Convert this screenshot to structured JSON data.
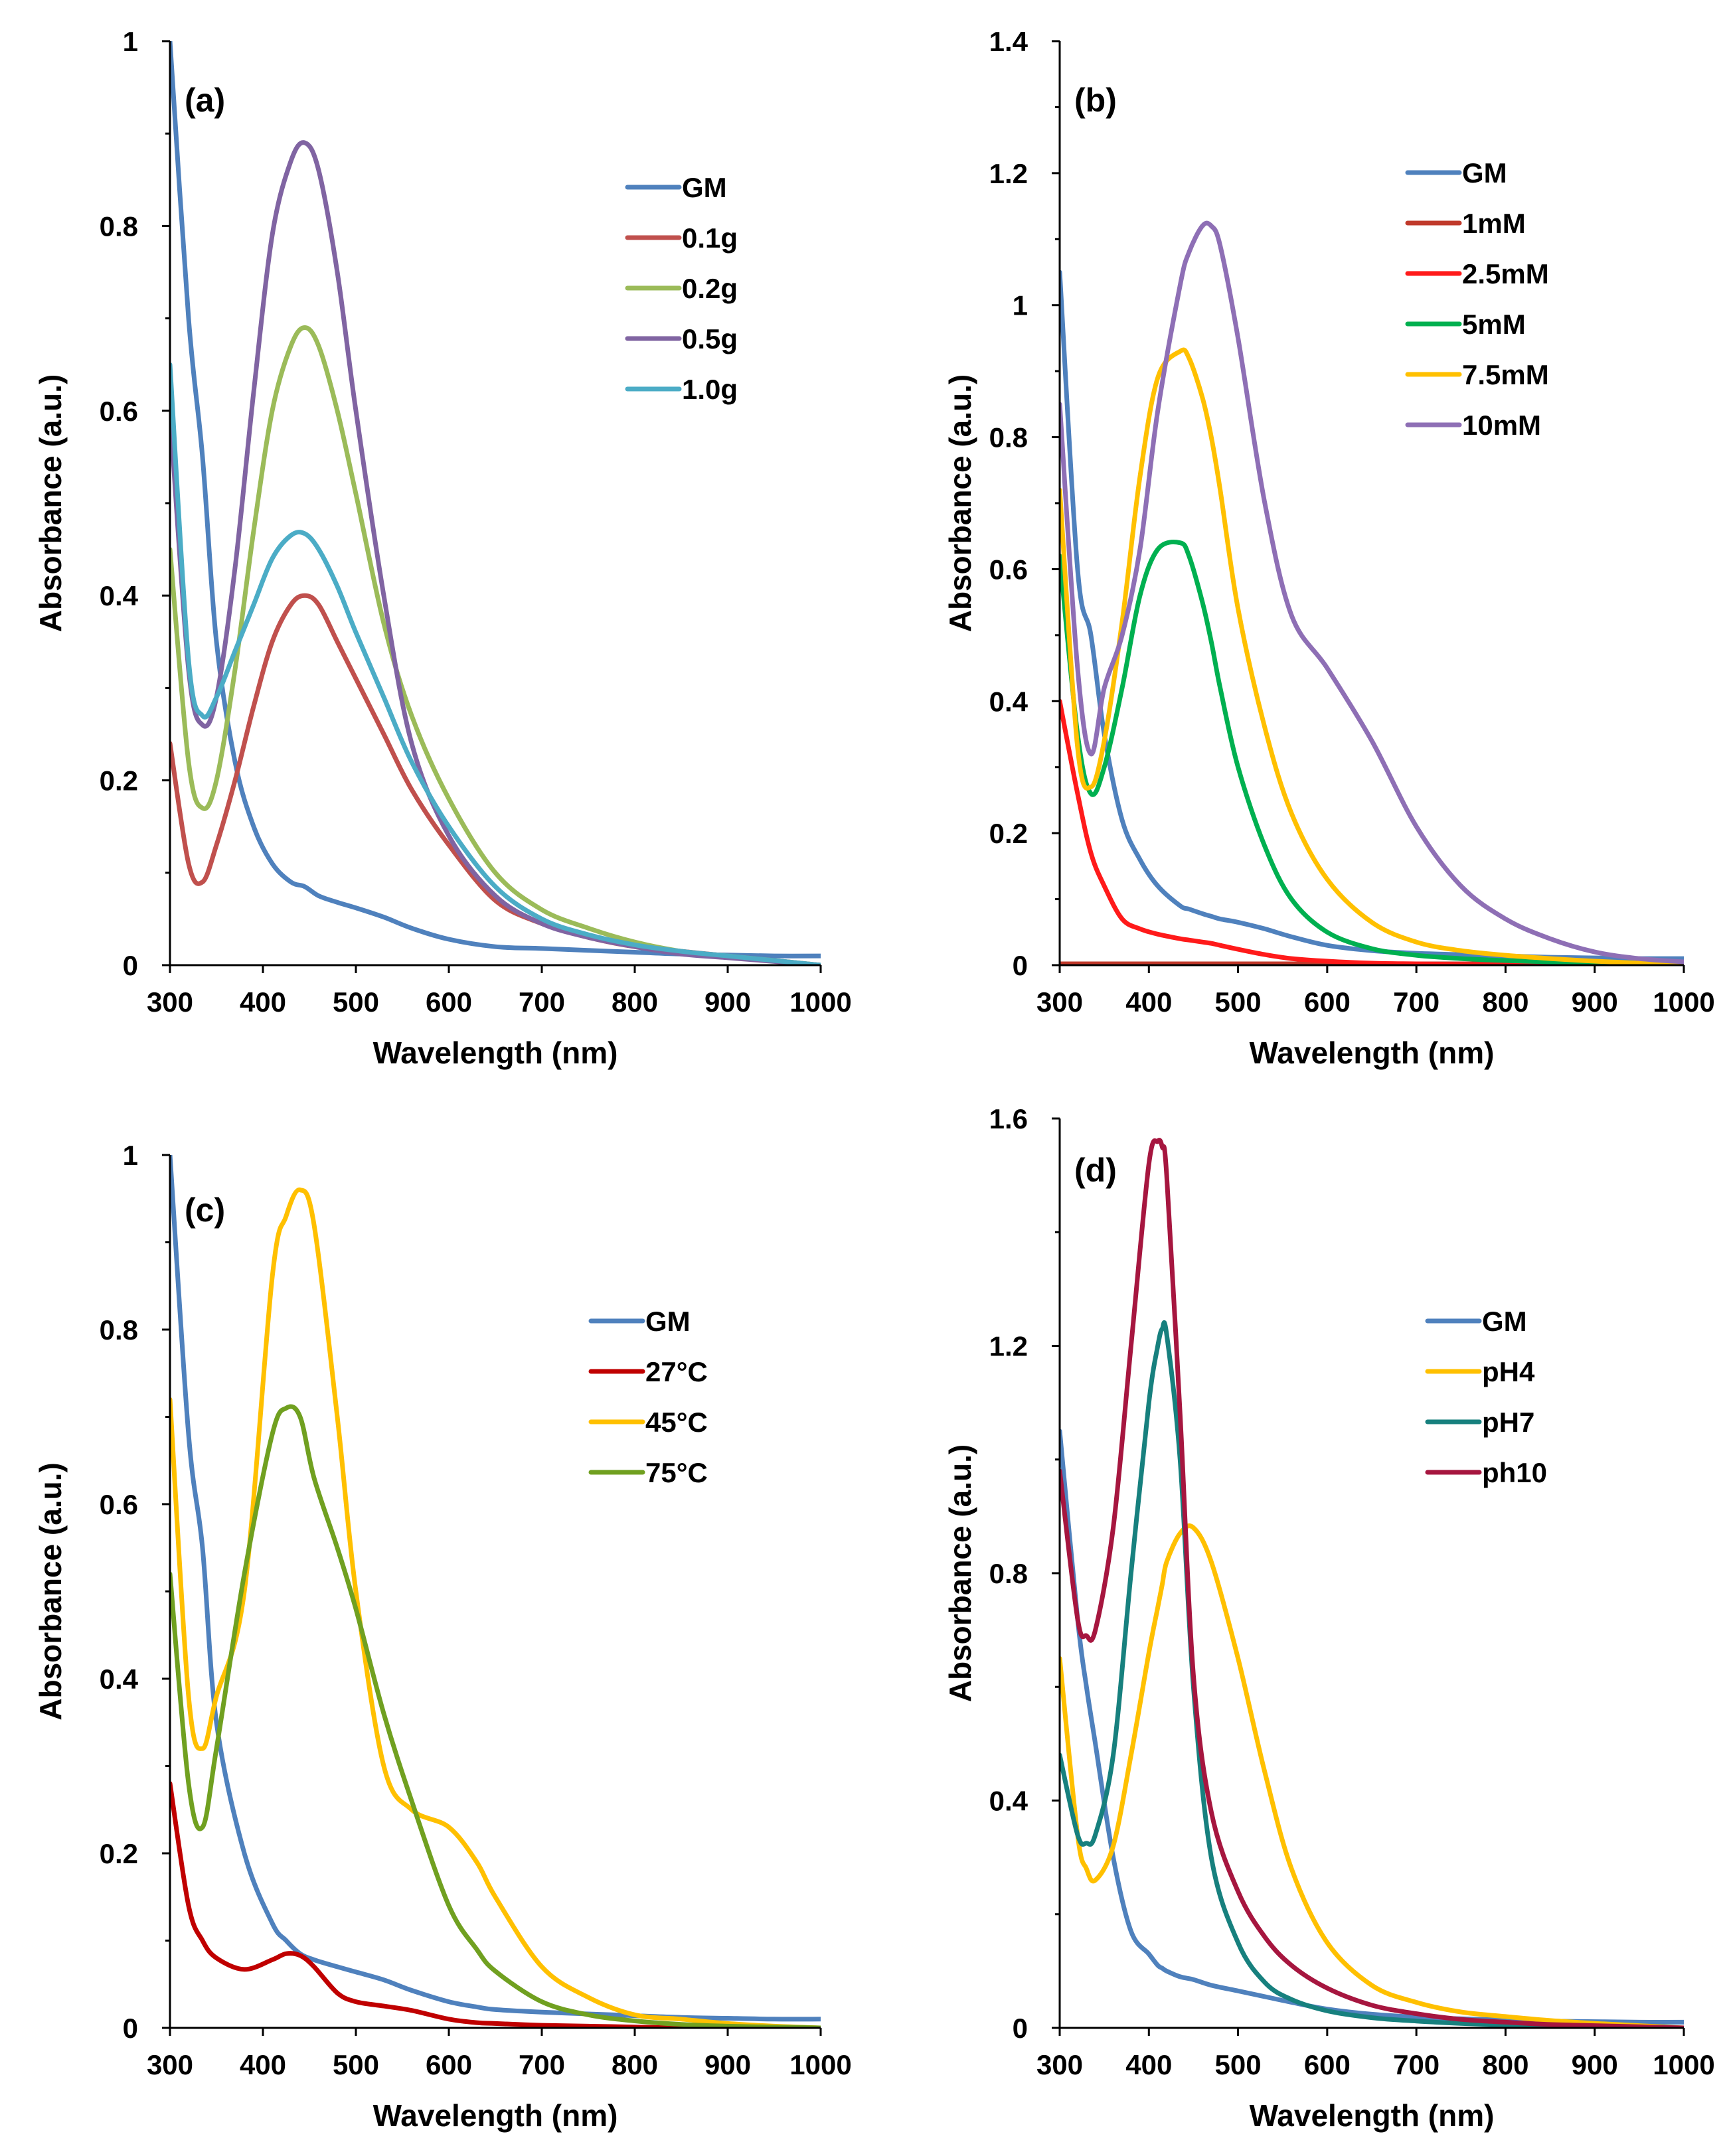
{
  "chart_data": [
    {
      "type": "line",
      "panel_label": "(a)",
      "xlabel": "Wavelength (nm)",
      "ylabel": "Absorbance (a.u.)",
      "xlim": [
        300,
        1000
      ],
      "ylim": [
        0,
        1
      ],
      "xticks": [
        "300",
        "400",
        "500",
        "600",
        "700",
        "800",
        "900",
        "1000"
      ],
      "yticks": [
        "0",
        "0.2",
        "0.4",
        "0.6",
        "0.8",
        "1"
      ],
      "legend_position": "top-right",
      "x": [
        300,
        320,
        335,
        350,
        370,
        390,
        410,
        430,
        445,
        460,
        480,
        500,
        530,
        560,
        600,
        650,
        700,
        750,
        800,
        850,
        900,
        950,
        1000
      ],
      "series": [
        {
          "name": "GM",
          "color": "#4f81bd",
          "values": [
            1.0,
            0.7,
            0.55,
            0.35,
            0.22,
            0.15,
            0.11,
            0.09,
            0.085,
            0.075,
            0.068,
            0.062,
            0.052,
            0.04,
            0.028,
            0.02,
            0.018,
            0.016,
            0.014,
            0.012,
            0.011,
            0.01,
            0.01
          ]
        },
        {
          "name": "0.1g",
          "color": "#c0504d",
          "values": [
            0.24,
            0.11,
            0.09,
            0.13,
            0.2,
            0.28,
            0.35,
            0.39,
            0.4,
            0.39,
            0.35,
            0.31,
            0.25,
            0.19,
            0.13,
            0.07,
            0.045,
            0.03,
            0.02,
            0.015,
            0.01,
            0.005,
            0.0
          ]
        },
        {
          "name": "0.2g",
          "color": "#9bbb59",
          "values": [
            0.45,
            0.22,
            0.17,
            0.2,
            0.32,
            0.47,
            0.6,
            0.67,
            0.69,
            0.67,
            0.6,
            0.51,
            0.37,
            0.27,
            0.18,
            0.1,
            0.06,
            0.04,
            0.025,
            0.015,
            0.01,
            0.005,
            0.0
          ]
        },
        {
          "name": "0.5g",
          "color": "#8064a2",
          "values": [
            0.6,
            0.32,
            0.26,
            0.29,
            0.43,
            0.62,
            0.79,
            0.87,
            0.89,
            0.86,
            0.75,
            0.6,
            0.4,
            0.24,
            0.14,
            0.075,
            0.045,
            0.03,
            0.02,
            0.012,
            0.008,
            0.004,
            0.0
          ]
        },
        {
          "name": "1.0g",
          "color": "#4bacc6",
          "values": [
            0.65,
            0.33,
            0.27,
            0.29,
            0.34,
            0.39,
            0.44,
            0.465,
            0.467,
            0.45,
            0.41,
            0.36,
            0.29,
            0.22,
            0.15,
            0.085,
            0.05,
            0.033,
            0.022,
            0.015,
            0.01,
            0.005,
            0.0
          ]
        }
      ]
    },
    {
      "type": "line",
      "panel_label": "(b)",
      "xlabel": "Wavelength (nm)",
      "ylabel": "Absorbance (a.u.)",
      "xlim": [
        300,
        1000
      ],
      "ylim": [
        0,
        1.4
      ],
      "xticks": [
        "300",
        "400",
        "500",
        "600",
        "700",
        "800",
        "900",
        "1000"
      ],
      "yticks": [
        "0",
        "0.2",
        "0.4",
        "0.6",
        "0.8",
        "1",
        "1.2",
        "1.4"
      ],
      "legend_position": "top-right",
      "x": [
        300,
        320,
        335,
        350,
        370,
        390,
        410,
        435,
        445,
        460,
        470,
        480,
        500,
        530,
        560,
        600,
        650,
        700,
        750,
        800,
        850,
        900,
        950,
        1000
      ],
      "series": [
        {
          "name": "GM",
          "color": "#4f81bd",
          "values": [
            1.05,
            0.6,
            0.5,
            0.35,
            0.22,
            0.16,
            0.12,
            0.09,
            0.085,
            0.078,
            0.074,
            0.07,
            0.065,
            0.055,
            0.043,
            0.03,
            0.022,
            0.018,
            0.016,
            0.014,
            0.012,
            0.011,
            0.01,
            0.01
          ]
        },
        {
          "name": "1mM",
          "color": "#c0392b",
          "values": [
            0.002,
            0.002,
            0.002,
            0.002,
            0.002,
            0.002,
            0.002,
            0.002,
            0.002,
            0.002,
            0.002,
            0.002,
            0.002,
            0.002,
            0.002,
            0.002,
            0.002,
            0.002,
            0.002,
            0.002,
            0.002,
            0.002,
            0.002,
            0.002
          ]
        },
        {
          "name": "2.5mM",
          "color": "#ff1a1a",
          "values": [
            0.4,
            0.26,
            0.17,
            0.12,
            0.07,
            0.055,
            0.047,
            0.04,
            0.038,
            0.035,
            0.033,
            0.03,
            0.024,
            0.016,
            0.01,
            0.006,
            0.003,
            0.002,
            0.001,
            0.0,
            0.0,
            0.0,
            0.0,
            0.0
          ]
        },
        {
          "name": "5mM",
          "color": "#00b050",
          "values": [
            0.62,
            0.35,
            0.26,
            0.3,
            0.42,
            0.56,
            0.63,
            0.64,
            0.62,
            0.55,
            0.49,
            0.42,
            0.3,
            0.18,
            0.1,
            0.05,
            0.025,
            0.015,
            0.01,
            0.007,
            0.005,
            0.003,
            0.002,
            0.0
          ]
        },
        {
          "name": "7.5mM",
          "color": "#ffc000",
          "values": [
            0.72,
            0.33,
            0.27,
            0.34,
            0.52,
            0.74,
            0.89,
            0.93,
            0.92,
            0.86,
            0.8,
            0.72,
            0.54,
            0.36,
            0.23,
            0.13,
            0.065,
            0.035,
            0.022,
            0.015,
            0.01,
            0.006,
            0.003,
            0.0
          ]
        },
        {
          "name": "10mM",
          "color": "#8e6fb5",
          "values": [
            0.85,
            0.45,
            0.32,
            0.42,
            0.5,
            0.63,
            0.84,
            1.03,
            1.08,
            1.12,
            1.12,
            1.09,
            0.95,
            0.7,
            0.53,
            0.45,
            0.34,
            0.21,
            0.12,
            0.07,
            0.04,
            0.02,
            0.01,
            0.005
          ]
        }
      ]
    },
    {
      "type": "line",
      "panel_label": "(c)",
      "xlabel": "Wavelength (nm)",
      "ylabel": "Absorbance (a.u.)",
      "xlim": [
        300,
        1000
      ],
      "ylim": [
        0,
        1
      ],
      "xticks": [
        "300",
        "400",
        "500",
        "600",
        "700",
        "800",
        "900",
        "1000"
      ],
      "yticks": [
        "0",
        "0.2",
        "0.4",
        "0.6",
        "0.8",
        "1"
      ],
      "legend_position": "right",
      "x": [
        300,
        320,
        335,
        350,
        380,
        410,
        425,
        440,
        455,
        480,
        500,
        530,
        560,
        600,
        630,
        650,
        700,
        750,
        800,
        850,
        900,
        950,
        1000
      ],
      "series": [
        {
          "name": "GM",
          "color": "#4f81bd",
          "values": [
            1.0,
            0.68,
            0.55,
            0.35,
            0.2,
            0.12,
            0.1,
            0.085,
            0.078,
            0.07,
            0.064,
            0.055,
            0.043,
            0.03,
            0.024,
            0.021,
            0.018,
            0.016,
            0.014,
            0.012,
            0.011,
            0.01,
            0.01
          ]
        },
        {
          "name": "27°C",
          "color": "#c00000",
          "values": [
            0.28,
            0.14,
            0.1,
            0.08,
            0.067,
            0.078,
            0.085,
            0.083,
            0.07,
            0.04,
            0.03,
            0.025,
            0.02,
            0.01,
            0.006,
            0.005,
            0.003,
            0.002,
            0.001,
            0.0,
            0.0,
            0.0,
            0.0
          ]
        },
        {
          "name": "45°C",
          "color": "#ffc000",
          "values": [
            0.72,
            0.38,
            0.32,
            0.38,
            0.5,
            0.86,
            0.93,
            0.96,
            0.92,
            0.7,
            0.5,
            0.3,
            0.25,
            0.23,
            0.19,
            0.15,
            0.07,
            0.035,
            0.015,
            0.01,
            0.005,
            0.002,
            0.0
          ]
        },
        {
          "name": "75°C",
          "color": "#70a020",
          "values": [
            0.52,
            0.28,
            0.23,
            0.32,
            0.52,
            0.68,
            0.71,
            0.7,
            0.63,
            0.55,
            0.48,
            0.36,
            0.26,
            0.14,
            0.09,
            0.065,
            0.03,
            0.015,
            0.008,
            0.004,
            0.002,
            0.001,
            0.0
          ]
        }
      ]
    },
    {
      "type": "line",
      "panel_label": "(d)",
      "xlabel": "Wavelength (nm)",
      "ylabel": "Absorbance (a.u.)",
      "xlim": [
        300,
        1000
      ],
      "ylim": [
        0,
        1.6
      ],
      "xticks": [
        "300",
        "400",
        "500",
        "600",
        "700",
        "800",
        "900",
        "1000"
      ],
      "yticks": [
        "0",
        "0.4",
        "0.8",
        "1.2",
        "1.6"
      ],
      "legend_position": "right",
      "x": [
        300,
        320,
        330,
        340,
        360,
        380,
        400,
        410,
        415,
        420,
        435,
        450,
        470,
        500,
        530,
        560,
        600,
        650,
        700,
        750,
        800,
        850,
        900,
        950,
        1000
      ],
      "series": [
        {
          "name": "GM",
          "color": "#4f81bd",
          "values": [
            1.05,
            0.72,
            0.6,
            0.5,
            0.3,
            0.17,
            0.13,
            0.11,
            0.105,
            0.1,
            0.09,
            0.085,
            0.075,
            0.065,
            0.055,
            0.045,
            0.033,
            0.024,
            0.019,
            0.016,
            0.014,
            0.012,
            0.011,
            0.01,
            0.01
          ]
        },
        {
          "name": "pH4",
          "color": "#ffc000",
          "values": [
            0.65,
            0.34,
            0.28,
            0.26,
            0.32,
            0.48,
            0.66,
            0.74,
            0.78,
            0.82,
            0.87,
            0.88,
            0.82,
            0.65,
            0.45,
            0.28,
            0.15,
            0.075,
            0.045,
            0.028,
            0.02,
            0.013,
            0.008,
            0.004,
            0.0
          ]
        },
        {
          "name": "pH7",
          "color": "#17807e",
          "values": [
            0.48,
            0.34,
            0.325,
            0.34,
            0.48,
            0.8,
            1.1,
            1.2,
            1.23,
            1.22,
            1.0,
            0.6,
            0.3,
            0.15,
            0.08,
            0.05,
            0.03,
            0.018,
            0.012,
            0.008,
            0.005,
            0.003,
            0.002,
            0.001,
            0.0
          ]
        },
        {
          "name": "ph10",
          "color": "#a6163f",
          "values": [
            0.98,
            0.72,
            0.69,
            0.7,
            0.88,
            1.2,
            1.52,
            1.56,
            1.55,
            1.5,
            1.08,
            0.62,
            0.38,
            0.24,
            0.16,
            0.11,
            0.07,
            0.04,
            0.025,
            0.015,
            0.01,
            0.006,
            0.004,
            0.002,
            0.0
          ]
        }
      ]
    }
  ]
}
